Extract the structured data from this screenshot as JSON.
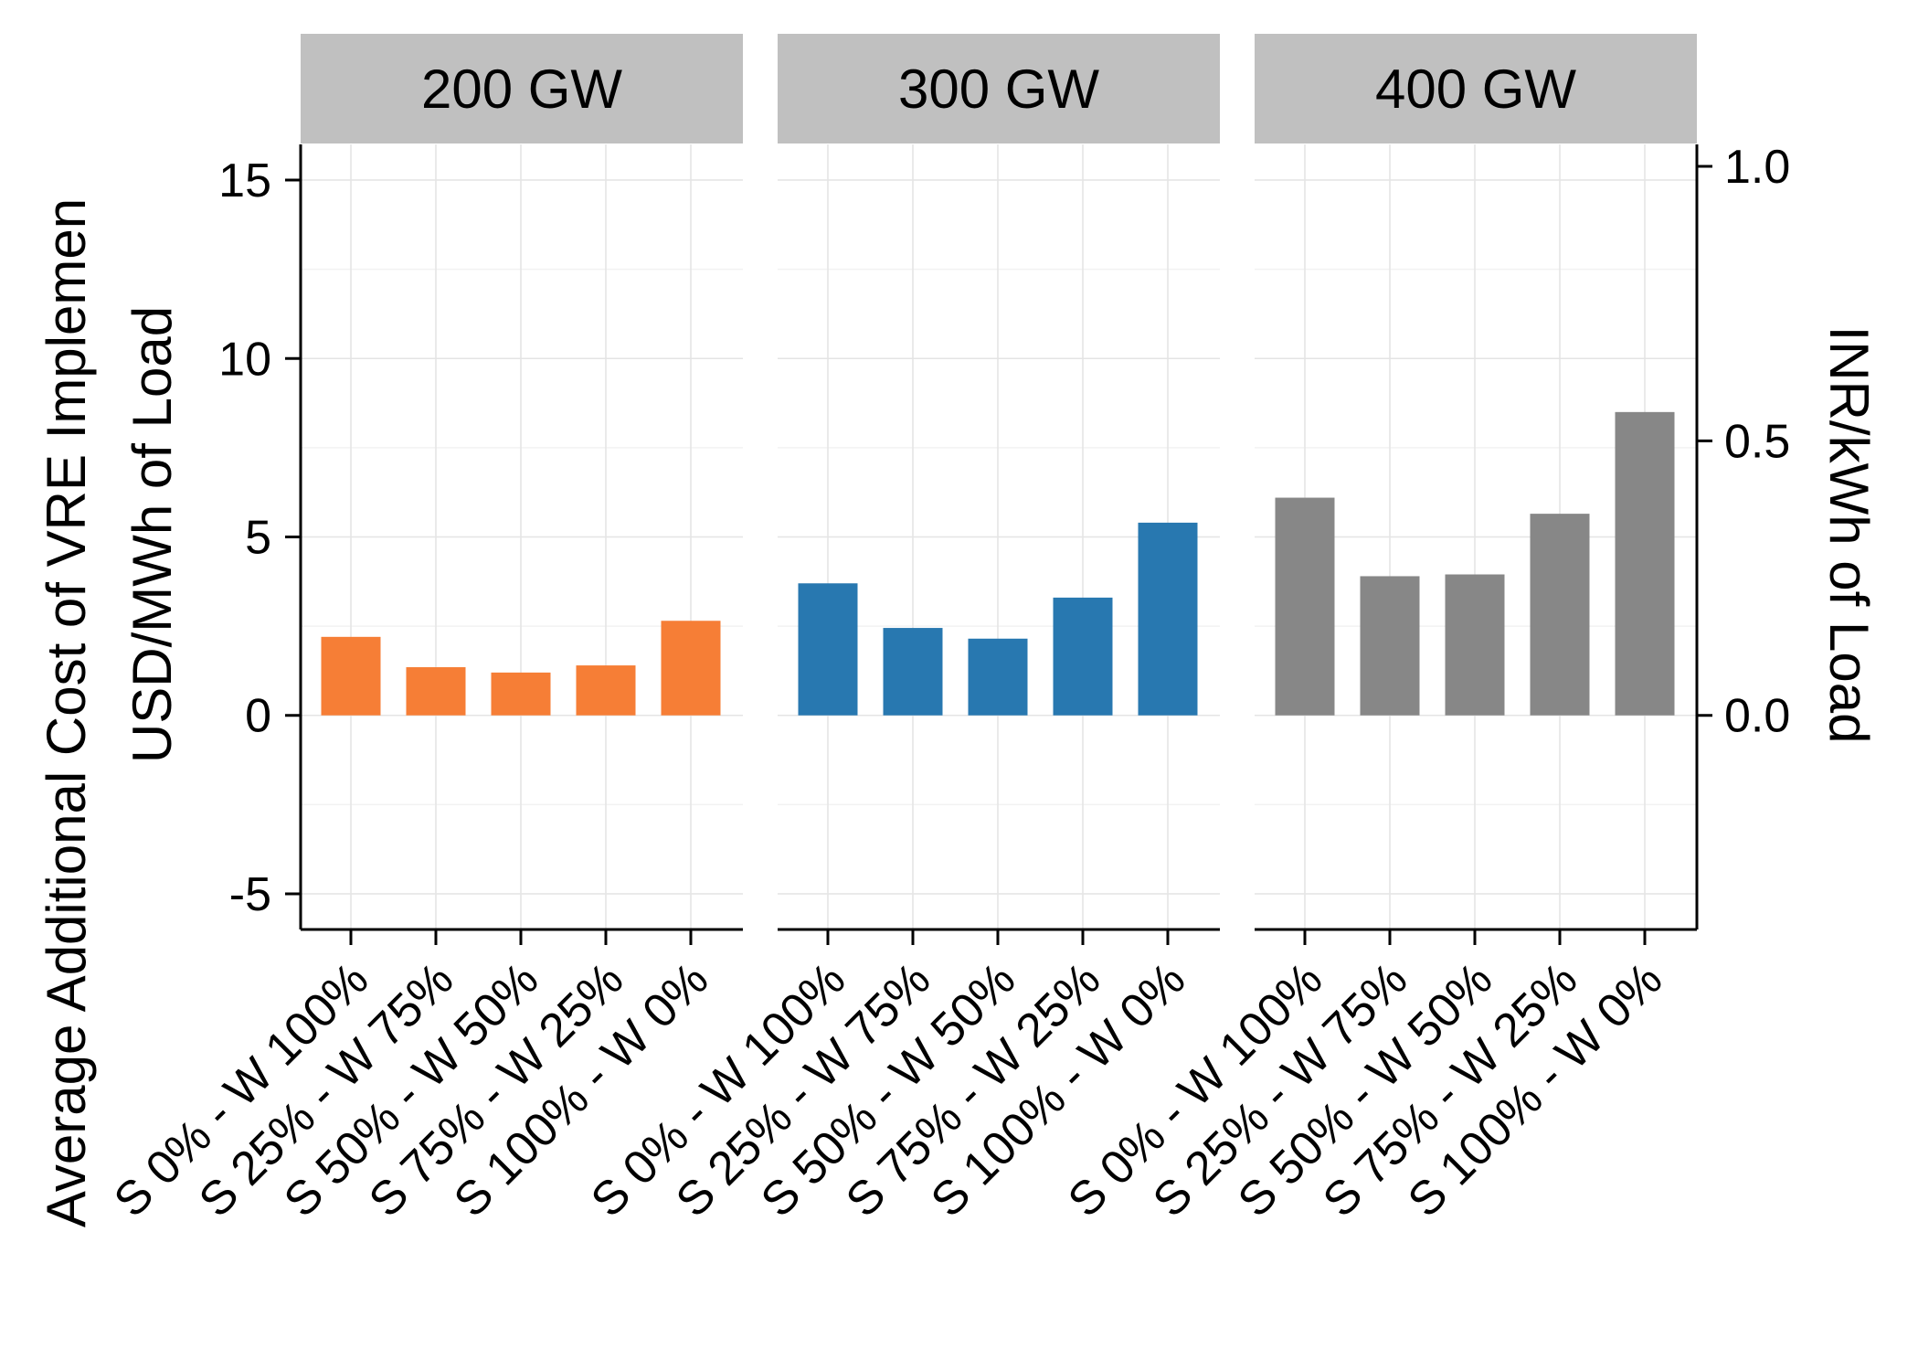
{
  "chart_data": {
    "type": "bar",
    "panels": [
      {
        "label": "200 GW",
        "color": "#F67E36",
        "values": [
          2.2,
          1.35,
          1.2,
          1.4,
          2.65
        ]
      },
      {
        "label": "300 GW",
        "color": "#2878B0",
        "values": [
          3.7,
          2.45,
          2.15,
          3.3,
          5.4
        ]
      },
      {
        "label": "400 GW",
        "color": "#878787",
        "values": [
          6.1,
          3.9,
          3.95,
          5.65,
          8.5
        ]
      }
    ],
    "categories": [
      "S 0% - W 100%",
      "S 25% - W 75%",
      "S 50% - W 50%",
      "S 75% - W 25%",
      "S 100% - W 0%"
    ],
    "ylabel_line1": "Average Additional Cost of VRE Implemen",
    "ylabel_line2": "USD/MWh of Load",
    "y2label": "INR/kWh of Load",
    "ylim": [
      -6,
      16
    ],
    "yticks": [
      -5,
      0,
      5,
      10,
      15
    ],
    "ytick_labels": [
      "-5",
      "0",
      "5",
      "10",
      "15"
    ],
    "y2lim": [
      -0.39,
      1.04
    ],
    "y2ticks": [
      0.0,
      0.5,
      1.0
    ],
    "y2tick_labels": [
      "0.0",
      "0.5",
      "1.0"
    ],
    "grid": true,
    "legend": "none"
  }
}
